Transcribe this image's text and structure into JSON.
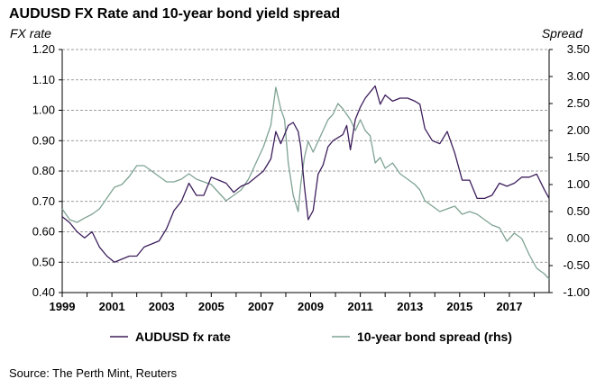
{
  "chart_data": {
    "type": "line",
    "title": "AUDUSD FX Rate and 10-year bond yield spread",
    "ylabel_left": "FX rate",
    "ylabel_right": "Spread",
    "source": "Source: The Perth Mint, Reuters",
    "xlim": [
      1999.0,
      2018.6
    ],
    "ylim_left": [
      0.4,
      1.2
    ],
    "ylim_right": [
      -1.0,
      3.5
    ],
    "grid": "horizontal dashed",
    "legend_position": "bottom",
    "x_tick_labels": [
      "1999",
      "2001",
      "2003",
      "2005",
      "2007",
      "2009",
      "2011",
      "2013",
      "2015",
      "2017"
    ],
    "y_left_tick_labels": [
      "0.40",
      "0.50",
      "0.60",
      "0.70",
      "0.80",
      "0.90",
      "1.00",
      "1.10",
      "1.20"
    ],
    "y_right_tick_labels": [
      "-1.00",
      "-0.50",
      "0.00",
      "0.50",
      "1.00",
      "1.50",
      "2.00",
      "2.50",
      "3.00",
      "3.50"
    ],
    "colors": {
      "fx": "#3d1f5c",
      "spread": "#7fa393",
      "grid": "#7f7f7f"
    },
    "series": [
      {
        "name": "AUDUSD fx rate",
        "axis": "left",
        "x": [
          1999.0,
          1999.3,
          1999.6,
          1999.9,
          2000.2,
          2000.5,
          2000.8,
          2001.1,
          2001.4,
          2001.7,
          2002.0,
          2002.3,
          2002.6,
          2002.9,
          2003.2,
          2003.5,
          2003.8,
          2004.1,
          2004.4,
          2004.7,
          2005.0,
          2005.3,
          2005.6,
          2005.9,
          2006.2,
          2006.5,
          2006.8,
          2007.1,
          2007.4,
          2007.6,
          2007.8,
          2007.95,
          2008.1,
          2008.3,
          2008.5,
          2008.6,
          2008.75,
          2008.9,
          2009.1,
          2009.3,
          2009.5,
          2009.7,
          2009.9,
          2010.1,
          2010.3,
          2010.45,
          2010.6,
          2010.8,
          2011.0,
          2011.2,
          2011.4,
          2011.6,
          2011.8,
          2012.0,
          2012.3,
          2012.6,
          2012.9,
          2013.2,
          2013.4,
          2013.6,
          2013.9,
          2014.2,
          2014.5,
          2014.8,
          2015.1,
          2015.4,
          2015.7,
          2016.0,
          2016.3,
          2016.6,
          2016.9,
          2017.2,
          2017.5,
          2017.8,
          2018.1,
          2018.4,
          2018.6
        ],
        "values": [
          0.65,
          0.63,
          0.6,
          0.58,
          0.6,
          0.55,
          0.52,
          0.5,
          0.51,
          0.52,
          0.52,
          0.55,
          0.56,
          0.57,
          0.61,
          0.67,
          0.7,
          0.76,
          0.72,
          0.72,
          0.78,
          0.77,
          0.76,
          0.73,
          0.75,
          0.76,
          0.78,
          0.8,
          0.84,
          0.93,
          0.89,
          0.92,
          0.95,
          0.96,
          0.93,
          0.88,
          0.75,
          0.64,
          0.67,
          0.79,
          0.82,
          0.88,
          0.9,
          0.91,
          0.92,
          0.95,
          0.87,
          0.97,
          1.01,
          1.04,
          1.06,
          1.08,
          1.02,
          1.05,
          1.03,
          1.04,
          1.04,
          1.03,
          1.02,
          0.94,
          0.9,
          0.89,
          0.93,
          0.86,
          0.77,
          0.77,
          0.71,
          0.71,
          0.72,
          0.76,
          0.75,
          0.76,
          0.78,
          0.78,
          0.79,
          0.74,
          0.71
        ]
      },
      {
        "name": "10-year bond spread (rhs)",
        "axis": "right",
        "x": [
          1999.0,
          1999.3,
          1999.6,
          1999.9,
          2000.2,
          2000.5,
          2000.8,
          2001.1,
          2001.4,
          2001.7,
          2002.0,
          2002.3,
          2002.6,
          2002.9,
          2003.2,
          2003.5,
          2003.8,
          2004.1,
          2004.4,
          2004.7,
          2005.0,
          2005.3,
          2005.6,
          2005.9,
          2006.2,
          2006.5,
          2006.8,
          2007.1,
          2007.4,
          2007.6,
          2007.8,
          2007.95,
          2008.1,
          2008.3,
          2008.5,
          2008.6,
          2008.75,
          2008.9,
          2009.1,
          2009.3,
          2009.5,
          2009.7,
          2009.9,
          2010.1,
          2010.3,
          2010.45,
          2010.6,
          2010.8,
          2011.0,
          2011.2,
          2011.4,
          2011.6,
          2011.8,
          2012.0,
          2012.3,
          2012.6,
          2012.9,
          2013.2,
          2013.4,
          2013.6,
          2013.9,
          2014.2,
          2014.5,
          2014.8,
          2015.1,
          2015.4,
          2015.7,
          2016.0,
          2016.3,
          2016.6,
          2016.9,
          2017.2,
          2017.5,
          2017.8,
          2018.1,
          2018.4,
          2018.6
        ],
        "values": [
          0.55,
          0.35,
          0.3,
          0.38,
          0.45,
          0.55,
          0.75,
          0.95,
          1.0,
          1.15,
          1.35,
          1.35,
          1.25,
          1.15,
          1.05,
          1.05,
          1.1,
          1.2,
          1.1,
          1.05,
          1.0,
          0.85,
          0.7,
          0.8,
          0.9,
          1.1,
          1.4,
          1.7,
          2.1,
          2.8,
          2.4,
          2.2,
          1.4,
          0.8,
          0.5,
          1.0,
          1.5,
          1.8,
          1.6,
          1.8,
          2.0,
          2.2,
          2.3,
          2.5,
          2.4,
          2.3,
          2.2,
          2.0,
          2.2,
          2.0,
          1.9,
          1.4,
          1.5,
          1.3,
          1.4,
          1.2,
          1.1,
          1.0,
          0.9,
          0.7,
          0.6,
          0.5,
          0.55,
          0.6,
          0.45,
          0.5,
          0.45,
          0.35,
          0.25,
          0.2,
          -0.05,
          0.1,
          0.0,
          -0.3,
          -0.55,
          -0.65,
          -0.75
        ]
      }
    ]
  }
}
